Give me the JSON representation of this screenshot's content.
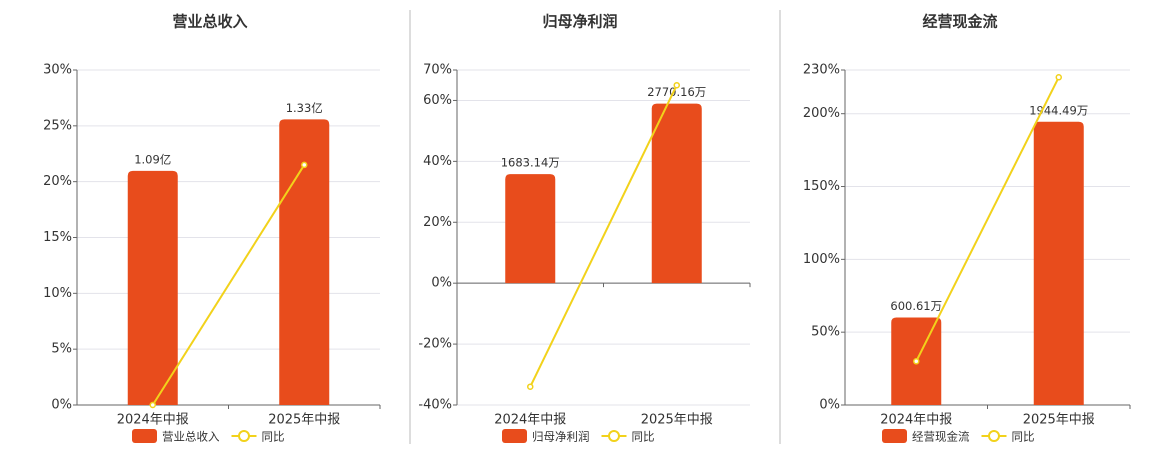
{
  "chart_data": [
    {
      "type": "bar-line",
      "title": "营业总收入",
      "categories": [
        "2024年中报",
        "2025年中报"
      ],
      "ylim": [
        0,
        30
      ],
      "yticks": [
        {
          "value": 0,
          "label": "0%"
        },
        {
          "value": 5,
          "label": "5%"
        },
        {
          "value": 10,
          "label": "10%"
        },
        {
          "value": 15,
          "label": "15%"
        },
        {
          "value": 20,
          "label": "20%"
        },
        {
          "value": 25,
          "label": "25%"
        },
        {
          "value": 30,
          "label": "30%"
        }
      ],
      "y2lim": [
        0,
        1.56
      ],
      "series": [
        {
          "name": "营业总收入",
          "color": "#e84c1c",
          "axis": "y2",
          "values": [
            1.09,
            1.33
          ],
          "value_labels": [
            "1.09亿",
            "1.33亿"
          ]
        },
        {
          "name": "同比",
          "color": "#f2d21b",
          "values": [
            0,
            21.5
          ]
        }
      ],
      "grid": true
    },
    {
      "type": "bar-line",
      "title": "归母净利润",
      "categories": [
        "2024年中报",
        "2025年中报"
      ],
      "ylim": [
        -40,
        70
      ],
      "yticks": [
        {
          "value": -40,
          "label": "-40%"
        },
        {
          "value": -20,
          "label": "-20%"
        },
        {
          "value": 0,
          "label": "0%"
        },
        {
          "value": 20,
          "label": "20%"
        },
        {
          "value": 40,
          "label": "40%"
        },
        {
          "value": 60,
          "label": "60%"
        },
        {
          "value": 70,
          "label": "70%"
        }
      ],
      "y2lim": [
        -1880,
        3290
      ],
      "series": [
        {
          "name": "归母净利润",
          "color": "#e84c1c",
          "axis": "y2",
          "values": [
            1683.14,
            2770.16
          ],
          "value_labels": [
            "1683.14万",
            "2770.16万"
          ]
        },
        {
          "name": "同比",
          "color": "#f2d21b",
          "values": [
            -34,
            65
          ]
        }
      ],
      "grid": true
    },
    {
      "type": "bar-line",
      "title": "经营现金流",
      "categories": [
        "2024年中报",
        "2025年中报"
      ],
      "ylim": [
        0,
        230
      ],
      "yticks": [
        {
          "value": 0,
          "label": "0%"
        },
        {
          "value": 50,
          "label": "50%"
        },
        {
          "value": 100,
          "label": "100%"
        },
        {
          "value": 150,
          "label": "150%"
        },
        {
          "value": 200,
          "label": "200%"
        },
        {
          "value": 230,
          "label": "230%"
        }
      ],
      "y2lim": [
        0,
        2300
      ],
      "series": [
        {
          "name": "经营现金流",
          "color": "#e84c1c",
          "axis": "y2",
          "values": [
            600.61,
            1944.49
          ],
          "value_labels": [
            "600.61万",
            "1944.49万"
          ]
        },
        {
          "name": "同比",
          "color": "#f2d21b",
          "values": [
            30,
            225
          ]
        }
      ],
      "grid": true
    }
  ]
}
